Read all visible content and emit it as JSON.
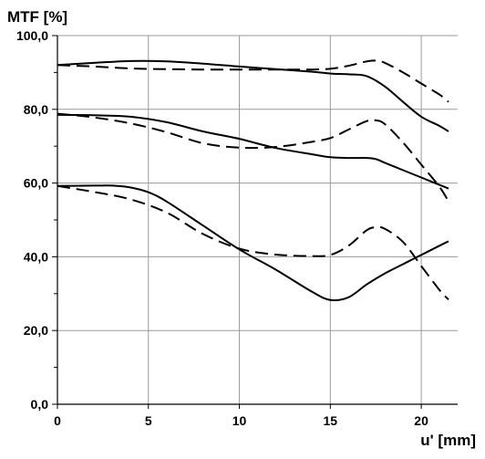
{
  "chart_data": {
    "type": "line",
    "ylabel": "MTF [%]",
    "xlabel": "u' [mm]",
    "xlim": [
      0,
      22
    ],
    "ylim": [
      0,
      100
    ],
    "x_ticks": [
      0,
      5,
      10,
      15,
      20
    ],
    "x_tick_labels": [
      "0",
      "5",
      "10",
      "15",
      "20"
    ],
    "y_ticks": [
      0,
      20,
      40,
      60,
      80,
      100
    ],
    "y_tick_labels": [
      "0,0",
      "20,0",
      "40,0",
      "60,0",
      "80,0",
      "100,0"
    ],
    "y_minor_step": 10,
    "grid": true,
    "legend": "none",
    "series": [
      {
        "style": "solid",
        "x": [
          0,
          2,
          4,
          6,
          8,
          10,
          12,
          14,
          15,
          16,
          17,
          18,
          19,
          20,
          21,
          21.5
        ],
        "y": [
          92,
          92.6,
          93.1,
          93,
          92.4,
          91.6,
          90.9,
          90.2,
          89.7,
          89.5,
          89,
          86.2,
          82,
          78,
          75.5,
          74
        ]
      },
      {
        "style": "dashed",
        "x": [
          0,
          2,
          4,
          6,
          8,
          10,
          12,
          14,
          15,
          16,
          17,
          17.5,
          18,
          19,
          20,
          21,
          21.5
        ],
        "y": [
          92,
          91.6,
          91.1,
          90.9,
          90.8,
          90.8,
          90.8,
          90.8,
          91,
          91.8,
          93,
          93.2,
          92.6,
          90,
          87,
          84,
          82
        ]
      },
      {
        "style": "solid",
        "x": [
          0,
          2,
          4,
          6,
          8,
          10,
          12,
          14,
          15,
          16,
          17,
          17.5,
          18,
          19,
          20,
          21,
          21.5
        ],
        "y": [
          78.5,
          78.4,
          78,
          76.5,
          74,
          72,
          69.5,
          67.8,
          67,
          66.8,
          66.8,
          66.5,
          65.5,
          63.5,
          61.5,
          59.5,
          58.5
        ]
      },
      {
        "style": "dashed",
        "x": [
          0,
          2,
          4,
          6,
          8,
          10,
          12,
          14,
          15,
          16,
          17,
          17.5,
          18,
          19,
          20,
          21,
          21.5
        ],
        "y": [
          78.8,
          77.8,
          76.2,
          73.8,
          70.8,
          69.6,
          69.8,
          71.2,
          72.2,
          74.5,
          76.8,
          77,
          76,
          71,
          65,
          59,
          55
        ]
      },
      {
        "style": "solid",
        "x": [
          0,
          2,
          3,
          4,
          5,
          6,
          8,
          10,
          12,
          14,
          15,
          16,
          17,
          18,
          19,
          20,
          21,
          21.5
        ],
        "y": [
          59.2,
          59.3,
          59.3,
          58.8,
          57.5,
          55,
          48.5,
          42,
          36.5,
          30.5,
          28.3,
          29,
          32.5,
          35.5,
          38,
          40.5,
          43,
          44.2
        ]
      },
      {
        "style": "dashed",
        "x": [
          0,
          2,
          4,
          6,
          8,
          10,
          12,
          14,
          15,
          16,
          17,
          17.5,
          18,
          19,
          20,
          21,
          21.5
        ],
        "y": [
          59.2,
          57.6,
          55.6,
          52,
          46.2,
          42.2,
          40.6,
          40.2,
          40.5,
          43,
          47.2,
          48,
          47.6,
          44,
          37.5,
          31,
          28.4
        ]
      }
    ]
  }
}
